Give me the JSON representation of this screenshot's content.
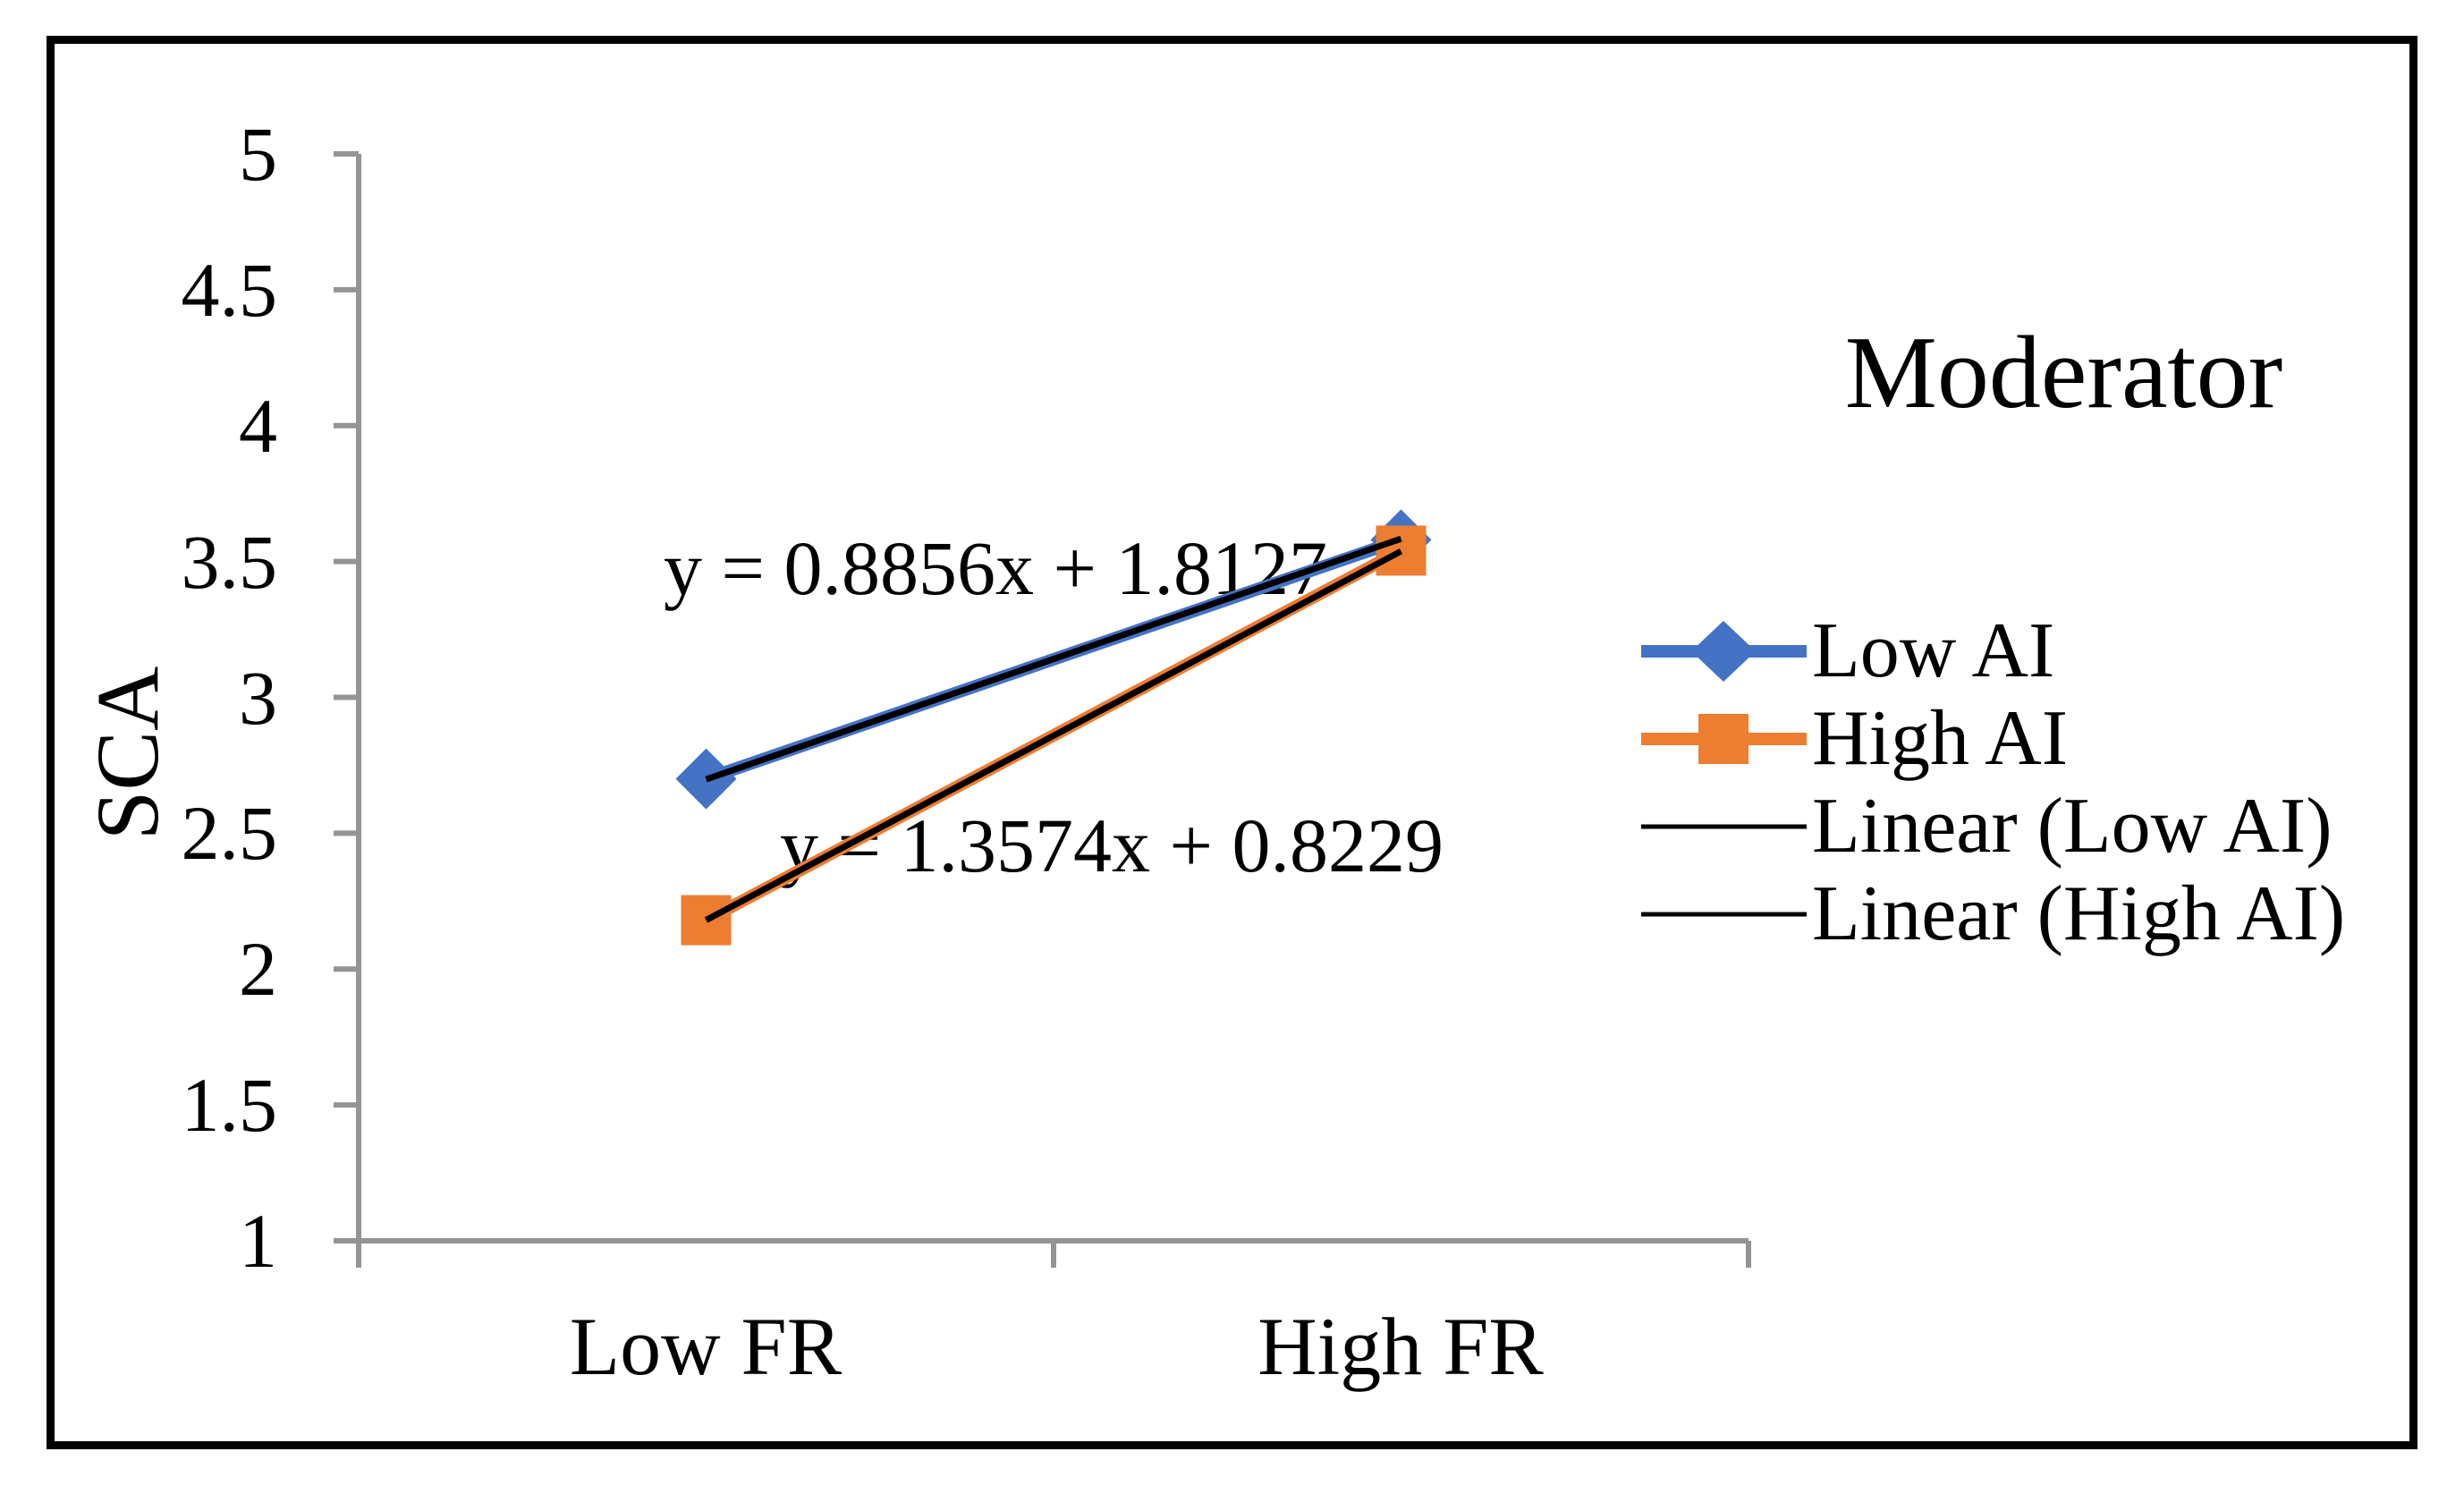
{
  "figure": {
    "y_axis_label": "SCA",
    "x_axis_labels": [
      "Low FR",
      "High FR"
    ]
  },
  "chart_data": {
    "type": "line",
    "title": "",
    "categories": [
      "Low FR",
      "High FR"
    ],
    "series": [
      {
        "name": "Low AI",
        "values": [
          2.7,
          3.58
        ],
        "color": "#4472C4",
        "marker": "diamond"
      },
      {
        "name": "High AI",
        "values": [
          2.18,
          3.54
        ],
        "color": "#ED7D31",
        "marker": "square"
      }
    ],
    "trendlines": [
      {
        "for": "Low AI",
        "equation": "y = 0.8856x + 1.8127",
        "slope": 0.8856,
        "intercept": 1.8127,
        "color": "#000000"
      },
      {
        "for": "High AI",
        "equation": "y = 1.3574x + 0.8229",
        "slope": 1.3574,
        "intercept": 0.8229,
        "color": "#000000"
      }
    ],
    "xlabel": "",
    "ylabel": "SCA",
    "ylim": [
      1,
      5
    ],
    "ytick_step": 0.5,
    "yticks": [
      "5",
      "4.5",
      "4",
      "3.5",
      "3",
      "2.5",
      "2",
      "1.5",
      "1"
    ],
    "grid": false,
    "axis_color": "#949494",
    "legend": {
      "title": "Moderator",
      "position": "right"
    }
  },
  "legend": {
    "title": "Moderator",
    "items": [
      {
        "label": "Low AI",
        "marker": "blue-line-with-diamond"
      },
      {
        "label": "High AI",
        "marker": "orange-line-with-square"
      },
      {
        "label": "Linear (Low AI)",
        "marker": "black-line"
      },
      {
        "label": "Linear (High AI)",
        "marker": "black-line"
      }
    ]
  },
  "colors": {
    "blue": "#4472C4",
    "orange": "#ED7D31",
    "axis_gray": "#949494",
    "text": "#000000",
    "border": "#000000",
    "background": "#ffffff"
  }
}
